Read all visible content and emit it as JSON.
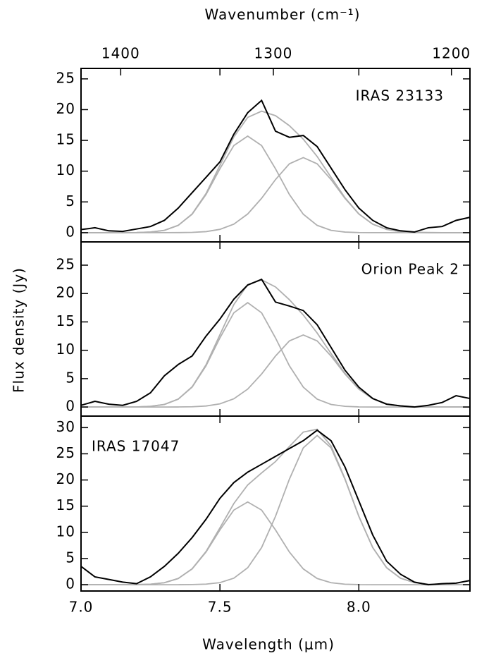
{
  "chart_data": [
    {
      "type": "line",
      "title": "IRAS 23133",
      "top_xlabel": "Wavenumber (cm⁻¹)",
      "top_xticks": [
        1400,
        1300,
        1200
      ],
      "xlim": [
        7.0,
        8.4
      ],
      "xticks": [
        {
          "value": 7,
          "label": "7.0"
        },
        7.5,
        {
          "value": 8,
          "label": "8.0"
        }
      ],
      "ylim": [
        -1.5,
        26.7
      ],
      "yticks": [
        0,
        5,
        10,
        15,
        20,
        25
      ],
      "x": [
        7,
        7.05,
        7.1,
        7.15,
        7.2,
        7.25,
        7.3,
        7.35,
        7.4,
        7.45,
        7.5,
        7.55,
        7.6,
        7.65,
        7.7,
        7.75,
        7.8,
        7.85,
        7.9,
        7.95,
        8,
        8.05,
        8.1,
        8.15,
        8.2,
        8.25,
        8.3,
        8.35,
        8.4
      ],
      "series": [
        {
          "color": "#000000",
          "values": [
            0.5,
            0.8,
            0.3,
            0.2,
            0.6,
            1.0,
            2.0,
            4.0,
            6.5,
            9.0,
            11.5,
            16.0,
            19.5,
            21.5,
            16.5,
            15.5,
            15.8,
            14.0,
            10.5,
            7.0,
            4.0,
            2.0,
            0.8,
            0.3,
            0.1,
            0.8,
            1.0,
            2.0,
            2.5
          ]
        },
        {
          "color": "#b0b0b0",
          "values": [
            0,
            0,
            0,
            0,
            0.02,
            0.1,
            0.38,
            1.19,
            3.0,
            6.2,
            10.39,
            14.16,
            15.7,
            14.16,
            10.39,
            6.2,
            3.0,
            1.19,
            0.38,
            0.1,
            0.02,
            0,
            0,
            0,
            0,
            0,
            0,
            0,
            0
          ]
        },
        {
          "color": "#b0b0b0",
          "values": [
            0,
            0,
            0,
            0,
            0,
            0,
            0,
            0.01,
            0.05,
            0.17,
            0.54,
            1.39,
            3.04,
            5.59,
            8.63,
            11.19,
            12.2,
            11.19,
            8.63,
            5.59,
            3.04,
            1.39,
            0.54,
            0.17,
            0.05,
            0.01,
            0,
            0,
            0
          ]
        },
        {
          "color": "#b0b0b0",
          "values": [
            0,
            0,
            0,
            0,
            0.02,
            0.1,
            0.38,
            1.2,
            3.05,
            6.37,
            10.93,
            15.55,
            18.74,
            19.75,
            19.02,
            17.39,
            15.2,
            12.38,
            9.01,
            5.69,
            3.06,
            1.39,
            0.54,
            0.17,
            0.05,
            0.01,
            0,
            0,
            0
          ]
        }
      ]
    },
    {
      "type": "line",
      "title": "Orion Peak 2",
      "ylabel": "Flux density (Jy)",
      "xlim": [
        7.0,
        8.4
      ],
      "xticks": [
        {
          "value": 7,
          "label": "7.0"
        },
        7.5,
        {
          "value": 8,
          "label": "8.0"
        }
      ],
      "ylim": [
        -1.6,
        29.1
      ],
      "yticks": [
        0,
        5,
        10,
        15,
        20,
        25
      ],
      "x": [
        7,
        7.05,
        7.1,
        7.15,
        7.2,
        7.25,
        7.3,
        7.35,
        7.4,
        7.45,
        7.5,
        7.55,
        7.6,
        7.65,
        7.7,
        7.75,
        7.8,
        7.85,
        7.9,
        7.95,
        8,
        8.05,
        8.1,
        8.15,
        8.2,
        8.25,
        8.3,
        8.35,
        8.4
      ],
      "series": [
        {
          "color": "#000000",
          "values": [
            0.3,
            1.0,
            0.5,
            0.3,
            1.0,
            2.5,
            5.5,
            7.5,
            9.0,
            12.5,
            15.5,
            19.0,
            21.5,
            22.5,
            18.5,
            17.8,
            17.0,
            14.5,
            10.5,
            6.5,
            3.5,
            1.5,
            0.5,
            0.2,
            0.0,
            0.3,
            0.8,
            2.0,
            1.5
          ]
        },
        {
          "color": "#b0b0b0",
          "values": [
            0,
            0,
            0,
            0,
            0.02,
            0.12,
            0.45,
            1.39,
            3.51,
            7.27,
            12.18,
            16.6,
            18.4,
            16.6,
            12.18,
            7.27,
            3.51,
            1.39,
            0.45,
            0.12,
            0.02,
            0,
            0,
            0,
            0,
            0,
            0,
            0,
            0
          ]
        },
        {
          "color": "#b0b0b0",
          "values": [
            0,
            0,
            0,
            0,
            0,
            0,
            0,
            0.01,
            0.05,
            0.18,
            0.56,
            1.45,
            3.16,
            5.82,
            8.98,
            11.65,
            12.7,
            11.65,
            8.98,
            5.82,
            3.16,
            1.45,
            0.56,
            0.18,
            0.05,
            0.01,
            0,
            0,
            0
          ]
        },
        {
          "color": "#b0b0b0",
          "values": [
            0,
            0,
            0,
            0,
            0.02,
            0.12,
            0.45,
            1.4,
            3.56,
            7.45,
            12.74,
            18.05,
            21.56,
            22.42,
            21.16,
            18.92,
            16.21,
            13.04,
            9.43,
            5.94,
            3.18,
            1.45,
            0.56,
            0.18,
            0.05,
            0.01,
            0,
            0,
            0
          ]
        }
      ]
    },
    {
      "type": "line",
      "title": "IRAS 17047",
      "xlabel": "Wavelength (μm)",
      "xlim": [
        7.0,
        8.4
      ],
      "xticks": [
        {
          "value": 7,
          "label": "7.0"
        },
        7.5,
        {
          "value": 8,
          "label": "8.0"
        }
      ],
      "ylim": [
        -1.2,
        32.2
      ],
      "yticks": [
        0,
        5,
        10,
        15,
        20,
        25,
        30
      ],
      "x": [
        7,
        7.05,
        7.1,
        7.15,
        7.2,
        7.25,
        7.3,
        7.35,
        7.4,
        7.45,
        7.5,
        7.55,
        7.6,
        7.65,
        7.7,
        7.75,
        7.8,
        7.85,
        7.9,
        7.95,
        8,
        8.05,
        8.1,
        8.15,
        8.2,
        8.25,
        8.3,
        8.35,
        8.4
      ],
      "series": [
        {
          "color": "#000000",
          "values": [
            3.5,
            1.5,
            1.0,
            0.5,
            0.2,
            1.5,
            3.5,
            6.0,
            9.0,
            12.5,
            16.5,
            19.5,
            21.5,
            23.0,
            24.5,
            26.0,
            27.5,
            29.5,
            27.5,
            22.5,
            16.0,
            9.5,
            4.5,
            2.0,
            0.5,
            0.0,
            0.2,
            0.3,
            0.8
          ]
        },
        {
          "color": "#b0b0b0",
          "values": [
            0,
            0,
            0,
            0,
            0.02,
            0.1,
            0.38,
            1.19,
            3.02,
            6.24,
            10.46,
            14.25,
            15.8,
            14.25,
            10.46,
            6.24,
            3.02,
            1.19,
            0.38,
            0.1,
            0.02,
            0,
            0,
            0,
            0,
            0,
            0,
            0,
            0
          ]
        },
        {
          "color": "#b0b0b0",
          "values": [
            0,
            0,
            0,
            0,
            0,
            0,
            0,
            0,
            0.03,
            0.11,
            0.4,
            1.25,
            3.25,
            7.1,
            13.05,
            20.15,
            26.13,
            28.5,
            26.13,
            20.15,
            13.05,
            7.1,
            3.25,
            1.25,
            0.4,
            0.11,
            0.03,
            0,
            0
          ]
        },
        {
          "color": "#b0b0b0",
          "values": [
            0,
            0,
            0,
            0,
            0.02,
            0.1,
            0.38,
            1.19,
            3.05,
            6.35,
            10.86,
            15.5,
            19.05,
            21.35,
            23.51,
            26.39,
            29.15,
            29.69,
            26.51,
            20.25,
            13.07,
            7.1,
            3.25,
            1.25,
            0.4,
            0.11,
            0.03,
            0,
            0
          ]
        }
      ]
    }
  ]
}
